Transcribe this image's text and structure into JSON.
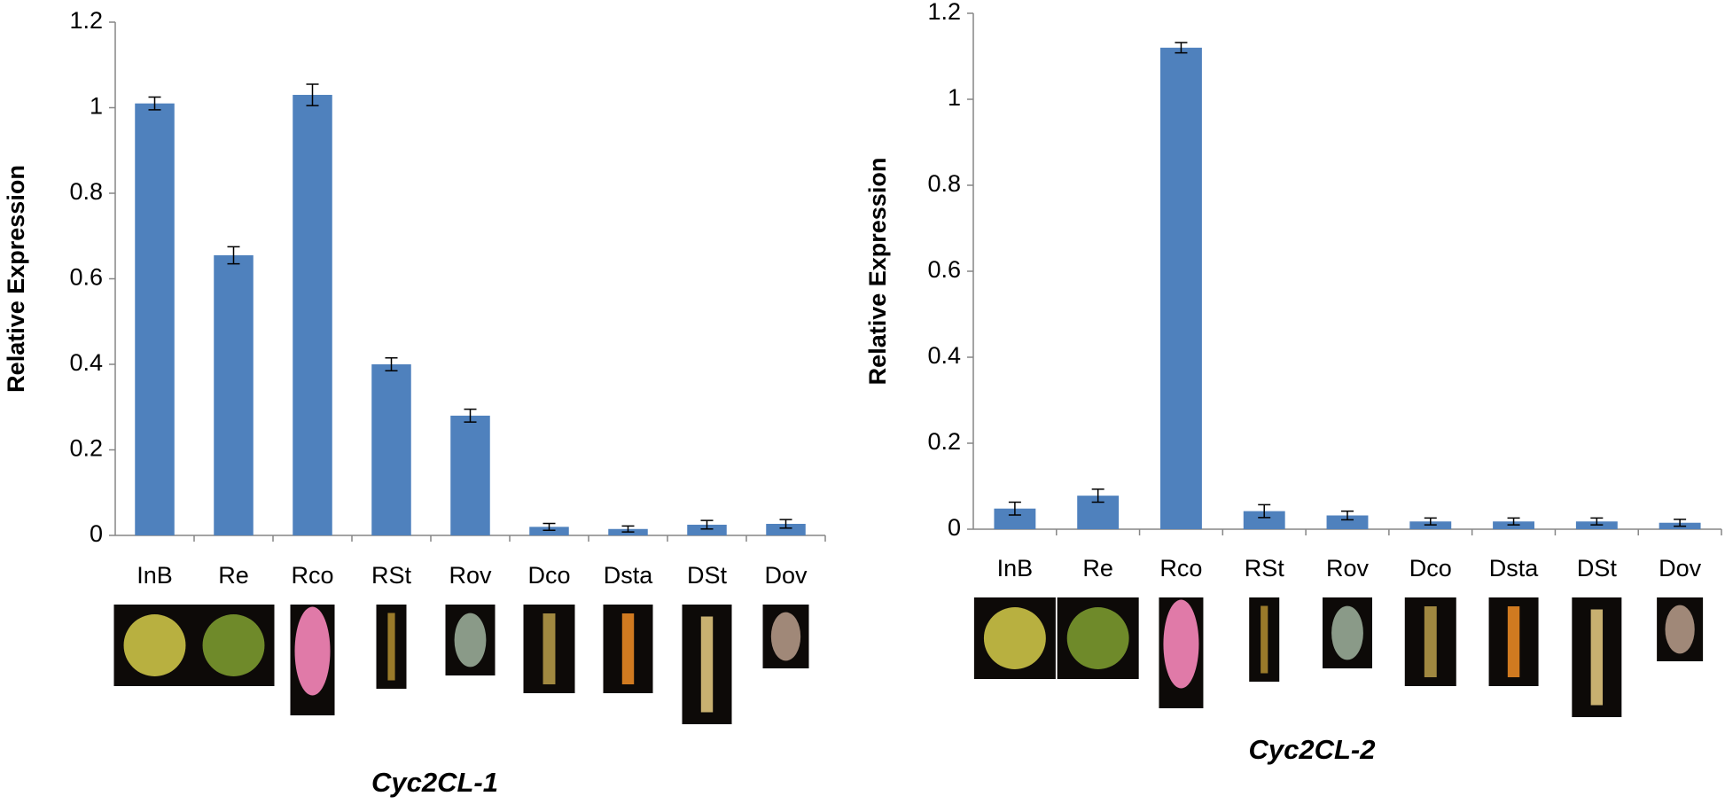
{
  "chart_data": [
    {
      "type": "bar",
      "title": "Cyc2CL-1",
      "y_label": "Relative Expression",
      "categories": [
        "InB",
        "Re",
        "Rco",
        "RSt",
        "Rov",
        "Dco",
        "Dsta",
        "DSt",
        "Dov"
      ],
      "values": [
        1.01,
        0.655,
        1.03,
        0.4,
        0.28,
        0.02,
        0.015,
        0.025,
        0.027
      ],
      "errors": [
        0.015,
        0.02,
        0.025,
        0.015,
        0.015,
        0.008,
        0.007,
        0.01,
        0.01
      ],
      "color": "#4f81bd",
      "ylim": [
        0,
        1.2
      ],
      "yticks": [
        0,
        0.2,
        0.4,
        0.6,
        0.8,
        1,
        1.2
      ],
      "grid": false
    },
    {
      "type": "bar",
      "title": "Cyc2CL-2",
      "y_label": "Relative Expression",
      "categories": [
        "InB",
        "Re",
        "Rco",
        "RSt",
        "Rov",
        "Dco",
        "Dsta",
        "DSt",
        "Dov"
      ],
      "values": [
        0.048,
        0.078,
        1.12,
        0.042,
        0.032,
        0.018,
        0.018,
        0.018,
        0.015
      ],
      "errors": [
        0.015,
        0.015,
        0.012,
        0.015,
        0.01,
        0.008,
        0.008,
        0.008,
        0.008
      ],
      "color": "#4f81bd",
      "ylim": [
        0,
        1.2
      ],
      "yticks": [
        0,
        0.2,
        0.4,
        0.6,
        0.8,
        1,
        1.2
      ],
      "grid": false
    }
  ]
}
